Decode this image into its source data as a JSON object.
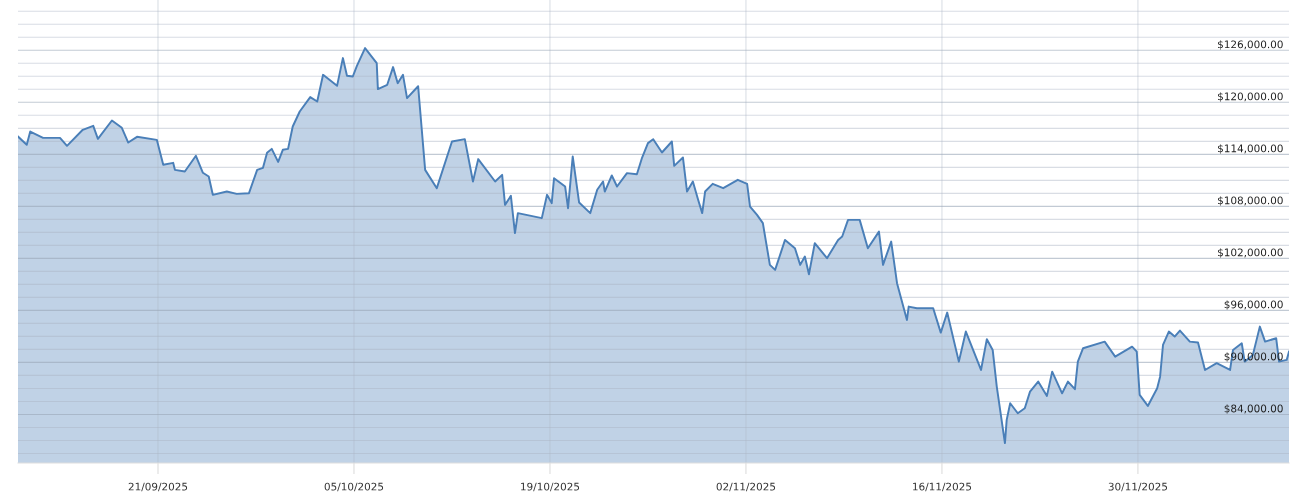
{
  "chart_data": {
    "type": "area",
    "x": [
      "2025-09-11T00:00",
      "2025-09-11T15:00",
      "2025-09-11T21:00",
      "2025-09-12T19:00",
      "2025-09-14T00:00",
      "2025-09-14T12:00",
      "2025-09-15T15:00",
      "2025-09-16T09:00",
      "2025-09-16T17:00",
      "2025-09-17T17:00",
      "2025-09-18T10:00",
      "2025-09-18T21:00",
      "2025-09-19T12:00",
      "2025-09-20T22:00",
      "2025-09-21T09:00",
      "2025-09-22T02:00",
      "2025-09-22T05:00",
      "2025-09-22T22:00",
      "2025-09-23T17:00",
      "2025-09-24T05:00",
      "2025-09-24T15:00",
      "2025-09-24T22:00",
      "2025-09-25T22:00",
      "2025-09-26T15:00",
      "2025-09-27T12:00",
      "2025-09-28T02:00",
      "2025-09-28T12:00",
      "2025-09-28T19:00",
      "2025-09-29T03:00",
      "2025-09-29T14:00",
      "2025-09-29T22:00",
      "2025-09-30T07:00",
      "2025-09-30T15:00",
      "2025-10-01T03:00",
      "2025-10-01T21:00",
      "2025-10-02T09:00",
      "2025-10-02T19:00",
      "2025-10-03T19:00",
      "2025-10-04T05:00",
      "2025-10-04T12:00",
      "2025-10-04T22:00",
      "2025-10-05T05:00",
      "2025-10-05T19:00",
      "2025-10-06T15:00",
      "2025-10-06T17:00",
      "2025-10-07T09:00",
      "2025-10-07T19:00",
      "2025-10-08T03:00",
      "2025-10-08T12:00",
      "2025-10-08T19:00",
      "2025-10-09T14:00",
      "2025-10-10T02:00",
      "2025-10-10T22:00",
      "2025-10-12T00:00",
      "2025-10-12T22:00",
      "2025-10-13T12:00",
      "2025-10-13T21:00",
      "2025-10-15T02:00",
      "2025-10-15T14:00",
      "2025-10-15T19:00",
      "2025-10-16T05:00",
      "2025-10-16T12:00",
      "2025-10-16T17:00",
      "2025-10-18T10:00",
      "2025-10-18T19:00",
      "2025-10-19T03:00",
      "2025-10-19T07:00",
      "2025-10-20T02:00",
      "2025-10-20T07:00",
      "2025-10-20T15:00",
      "2025-10-21T02:00",
      "2025-10-21T21:00",
      "2025-10-22T09:00",
      "2025-10-22T19:00",
      "2025-10-22T22:00",
      "2025-10-23T10:00",
      "2025-10-23T19:00",
      "2025-10-24T12:00",
      "2025-10-25T05:00",
      "2025-10-25T14:00",
      "2025-10-26T00:00",
      "2025-10-26T09:00",
      "2025-10-27T00:00",
      "2025-10-27T17:00",
      "2025-10-27T21:00",
      "2025-10-28T12:00",
      "2025-10-28T19:00",
      "2025-10-29T05:00",
      "2025-10-29T14:00",
      "2025-10-29T21:00",
      "2025-10-30T02:00",
      "2025-10-30T15:00",
      "2025-10-31T09:00",
      "2025-11-01T10:00",
      "2025-11-02T02:00",
      "2025-11-02T07:00",
      "2025-11-02T19:00",
      "2025-11-03T05:00",
      "2025-11-03T17:00",
      "2025-11-04T02:00",
      "2025-11-04T19:00",
      "2025-11-05T12:00",
      "2025-11-05T21:00",
      "2025-11-06T05:00",
      "2025-11-06T12:00",
      "2025-11-06T22:00",
      "2025-11-07T19:00",
      "2025-11-08T14:00",
      "2025-11-08T21:00",
      "2025-11-09T07:00",
      "2025-11-10T03:00",
      "2025-11-10T17:00",
      "2025-11-11T12:00",
      "2025-11-11T19:00",
      "2025-11-12T09:00",
      "2025-11-12T19:00",
      "2025-11-13T12:00",
      "2025-11-13T15:00",
      "2025-11-14T05:00",
      "2025-11-15T09:00",
      "2025-11-15T22:00",
      "2025-11-16T09:00",
      "2025-11-17T05:00",
      "2025-11-17T17:00",
      "2025-11-18T19:00",
      "2025-11-19T05:00",
      "2025-11-19T15:00",
      "2025-11-19T22:00",
      "2025-11-20T12:00",
      "2025-11-20T15:00",
      "2025-11-20T21:00",
      "2025-11-21T10:00",
      "2025-11-21T22:00",
      "2025-11-22T07:00",
      "2025-11-22T21:00",
      "2025-11-23T12:00",
      "2025-11-23T21:00",
      "2025-11-24T14:00",
      "2025-11-25T00:00",
      "2025-11-25T12:00",
      "2025-11-25T17:00",
      "2025-11-26T02:00",
      "2025-11-27T15:00",
      "2025-11-28T09:00",
      "2025-11-29T14:00",
      "2025-11-29T22:00",
      "2025-11-30T03:00",
      "2025-11-30T17:00",
      "2025-12-01T09:00",
      "2025-12-01T14:00",
      "2025-12-01T19:00",
      "2025-12-02T05:00",
      "2025-12-02T15:00",
      "2025-12-03T00:00",
      "2025-12-03T17:00",
      "2025-12-04T07:00",
      "2025-12-04T19:00",
      "2025-12-05T15:00",
      "2025-12-06T14:00",
      "2025-12-06T19:00",
      "2025-12-07T10:00",
      "2025-12-07T15:00",
      "2025-12-08T05:00",
      "2025-12-08T17:00",
      "2025-12-09T02:00",
      "2025-12-09T21:00",
      "2025-12-10T02:00",
      "2025-12-10T15:00",
      "2025-12-10T19:00"
    ],
    "series": [
      {
        "color": "#4a7fb8",
        "values": [
          116050,
          115100,
          116630,
          115900,
          115900,
          114980,
          116830,
          117290,
          115790,
          117900,
          117060,
          115360,
          116020,
          115670,
          112790,
          113020,
          112210,
          112020,
          113830,
          111870,
          111440,
          109330,
          109710,
          109440,
          109520,
          112210,
          112440,
          114170,
          114630,
          113130,
          114520,
          114630,
          117210,
          118940,
          120600,
          120090,
          123170,
          121900,
          125100,
          123060,
          122980,
          124210,
          126250,
          124520,
          121520,
          122020,
          124060,
          122210,
          123170,
          120480,
          121850,
          112210,
          110100,
          115480,
          115750,
          110870,
          113450,
          110870,
          111630,
          108170,
          109210,
          104910,
          107220,
          106640,
          109330,
          108370,
          111250,
          110290,
          107790,
          113750,
          108440,
          107220,
          109910,
          110870,
          109710,
          111560,
          110290,
          111830,
          111710,
          113630,
          115290,
          115750,
          114210,
          115480,
          112670,
          113630,
          109710,
          110870,
          108750,
          107220,
          109710,
          110600,
          110100,
          111060,
          110600,
          107980,
          107020,
          106060,
          101250,
          100670,
          104130,
          103170,
          101250,
          102210,
          100170,
          103750,
          102020,
          104130,
          104520,
          106440,
          106440,
          103170,
          105090,
          101250,
          103940,
          99140,
          94900,
          96440,
          96250,
          96250,
          93440,
          95750,
          90090,
          93560,
          89130,
          92680,
          91440,
          87210,
          80700,
          83370,
          85290,
          84140,
          84720,
          86630,
          87790,
          86140,
          88940,
          86440,
          87790,
          86910,
          90090,
          91640,
          92400,
          90670,
          91820,
          91250,
          86250,
          84980,
          87020,
          88360,
          92020,
          93560,
          92980,
          93670,
          92400,
          92290,
          89130,
          89910,
          89130,
          91440,
          92210,
          90090,
          90860,
          94130,
          92400,
          92790,
          90090,
          90290,
          91250
        ]
      }
    ],
    "xlim": [
      "2025-09-11T00:00",
      "2025-12-10T19:00"
    ],
    "ylim": [
      78400,
      131800
    ],
    "xticks": [
      {
        "value": "2025-09-21",
        "label": "21/09/2025"
      },
      {
        "value": "2025-10-05",
        "label": "05/10/2025"
      },
      {
        "value": "2025-10-19",
        "label": "19/10/2025"
      },
      {
        "value": "2025-11-02",
        "label": "02/11/2025"
      },
      {
        "value": "2025-11-16",
        "label": "16/11/2025"
      },
      {
        "value": "2025-11-30",
        "label": "30/11/2025"
      }
    ],
    "yticks": [
      {
        "value": 79500,
        "label": null
      },
      {
        "value": 81000,
        "label": null
      },
      {
        "value": 82500,
        "label": null
      },
      {
        "value": 84000,
        "label": "$84,000.00"
      },
      {
        "value": 85500,
        "label": null
      },
      {
        "value": 87000,
        "label": null
      },
      {
        "value": 88500,
        "label": null
      },
      {
        "value": 90000,
        "label": "$90,000.00"
      },
      {
        "value": 91500,
        "label": null
      },
      {
        "value": 93000,
        "label": null
      },
      {
        "value": 94500,
        "label": null
      },
      {
        "value": 96000,
        "label": "$96,000.00"
      },
      {
        "value": 97500,
        "label": null
      },
      {
        "value": 99000,
        "label": null
      },
      {
        "value": 100500,
        "label": null
      },
      {
        "value": 102000,
        "label": "$102,000.00"
      },
      {
        "value": 103500,
        "label": null
      },
      {
        "value": 105000,
        "label": null
      },
      {
        "value": 106500,
        "label": null
      },
      {
        "value": 108000,
        "label": "$108,000.00"
      },
      {
        "value": 109500,
        "label": null
      },
      {
        "value": 111000,
        "label": null
      },
      {
        "value": 112500,
        "label": null
      },
      {
        "value": 114000,
        "label": "$114,000.00"
      },
      {
        "value": 115500,
        "label": null
      },
      {
        "value": 117000,
        "label": null
      },
      {
        "value": 118500,
        "label": null
      },
      {
        "value": 120000,
        "label": "$120,000.00"
      },
      {
        "value": 121500,
        "label": null
      },
      {
        "value": 123000,
        "label": null
      },
      {
        "value": 124500,
        "label": null
      },
      {
        "value": 126000,
        "label": "$126,000.00"
      },
      {
        "value": 127500,
        "label": null
      },
      {
        "value": 129000,
        "label": null
      },
      {
        "value": 130500,
        "label": null
      }
    ],
    "grid": true
  }
}
